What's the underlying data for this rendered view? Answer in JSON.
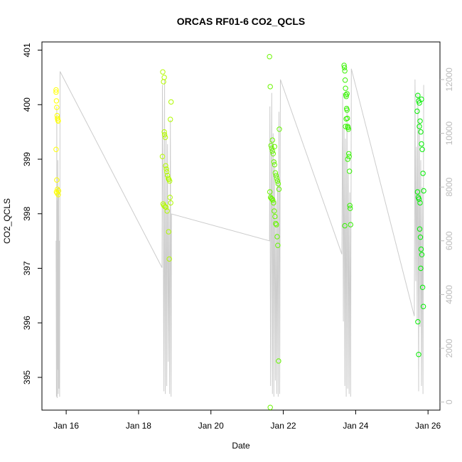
{
  "chart_data": {
    "type": "scatter",
    "title": "ORCAS RF01-6 CO2_QCLS",
    "xlabel": "Date",
    "ylabel": "CO2_QCLS",
    "x_ticks": [
      "Jan 16",
      "Jan 18",
      "Jan 20",
      "Jan 22",
      "Jan 24",
      "Jan 26"
    ],
    "x_tick_days": [
      16,
      18,
      20,
      22,
      24,
      26
    ],
    "xlim": [
      15.33,
      26.33
    ],
    "ylim": [
      394.4,
      401.15
    ],
    "y_ticks": [
      395,
      396,
      397,
      398,
      399,
      400,
      401
    ],
    "y2lim": [
      -300,
      13400
    ],
    "y2_ticks": [
      0,
      2000,
      4000,
      6000,
      8000,
      10000,
      12000
    ],
    "grid": false,
    "line_color": "#cccccc",
    "point_color_start": "#ffff00",
    "point_color_end": "#00ee00",
    "series": [
      {
        "kind": "points",
        "flights": [
          {
            "x": [
              15.72,
              15.72,
              15.73,
              15.74,
              15.75,
              15.76,
              15.77,
              15.78,
              15.72,
              15.74,
              15.76,
              15.73,
              15.75,
              15.78,
              15.79
            ],
            "y": [
              400.23,
              400.27,
              400.07,
              399.95,
              399.8,
              399.75,
              399.72,
              399.7,
              399.18,
              398.62,
              398.45,
              398.4,
              398.38,
              398.35,
              398.42
            ]
          },
          {
            "x": [
              18.67,
              18.69,
              18.71,
              18.72,
              18.74,
              18.75,
              18.77,
              18.78,
              18.8,
              18.82,
              18.84,
              18.86,
              18.87,
              18.89,
              18.68,
              18.7,
              18.73,
              18.76,
              18.79,
              18.83,
              18.85,
              18.88,
              18.9,
              18.71,
              18.66
            ],
            "y": [
              400.6,
              400.42,
              399.5,
              399.45,
              399.4,
              398.88,
              398.82,
              398.77,
              398.7,
              398.65,
              398.63,
              398.6,
              398.3,
              398.2,
              398.18,
              398.15,
              398.13,
              398.12,
              398.05,
              397.67,
              397.17,
              399.73,
              400.05,
              400.5,
              399.05
            ]
          },
          {
            "x": [
              21.62,
              21.64,
              21.66,
              21.68,
              21.7,
              21.72,
              21.74,
              21.76,
              21.78,
              21.8,
              21.82,
              21.84,
              21.86,
              21.88,
              21.63,
              21.65,
              21.67,
              21.69,
              21.71,
              21.73,
              21.75,
              21.77,
              21.79,
              21.81,
              21.83,
              21.85,
              21.87,
              21.89,
              21.64,
              21.7,
              21.76
            ],
            "y": [
              400.88,
              400.33,
              399.25,
              399.2,
              399.15,
              399.1,
              398.95,
              398.9,
              398.75,
              398.7,
              398.65,
              398.6,
              398.55,
              398.45,
              398.4,
              398.3,
              398.28,
              398.27,
              398.25,
              398.2,
              398.05,
              397.95,
              397.82,
              397.8,
              397.58,
              397.42,
              395.3,
              399.55,
              394.45,
              399.35,
              399.23
            ]
          },
          {
            "x": [
              23.68,
              23.69,
              23.7,
              23.71,
              23.72,
              23.73,
              23.74,
              23.75,
              23.76,
              23.77,
              23.78,
              23.79,
              23.8,
              23.81,
              23.82,
              23.83,
              23.84,
              23.85,
              23.86,
              23.7,
              23.72,
              23.74,
              23.76,
              23.78
            ],
            "y": [
              400.72,
              400.68,
              400.62,
              400.45,
              400.3,
              400.18,
              400.15,
              399.93,
              399.9,
              399.75,
              399.6,
              399.58,
              399.55,
              399.1,
              399.05,
              398.78,
              398.15,
              398.1,
              397.8,
              397.78,
              399.6,
              399.74,
              400.2,
              399.0
            ]
          },
          {
            "x": [
              25.7,
              25.72,
              25.74,
              25.76,
              25.78,
              25.8,
              25.82,
              25.84,
              25.86,
              25.88,
              25.71,
              25.73,
              25.75,
              25.77,
              25.79,
              25.81,
              25.83,
              25.85,
              25.87,
              25.72,
              25.74,
              25.76,
              25.78,
              25.8,
              25.82
            ],
            "y": [
              399.88,
              400.17,
              400.07,
              400.03,
              399.7,
              399.5,
              399.28,
              399.18,
              398.74,
              398.42,
              398.4,
              398.3,
              398.27,
              397.72,
              397.57,
              397.35,
              397.25,
              396.65,
              396.3,
              396.02,
              395.42,
              399.6,
              398.2,
              397.0,
              400.1
            ]
          }
        ]
      },
      {
        "kind": "line",
        "axis": "right",
        "name": "",
        "x": [
          15.72,
          15.73,
          15.74,
          15.75,
          15.75,
          15.76,
          15.77,
          15.78,
          15.79,
          15.8,
          15.81,
          15.82,
          15.83,
          18.65,
          18.66,
          18.68,
          18.7,
          18.72,
          18.72,
          18.74,
          18.76,
          18.78,
          18.8,
          18.82,
          18.84,
          18.86,
          18.88,
          18.9,
          18.91,
          21.62,
          21.63,
          21.65,
          21.68,
          21.7,
          21.72,
          21.74,
          21.76,
          21.78,
          21.8,
          21.82,
          21.84,
          21.86,
          21.88,
          21.9,
          21.92,
          23.62,
          23.64,
          23.66,
          23.68,
          23.7,
          23.72,
          23.74,
          23.76,
          23.78,
          23.8,
          23.82,
          23.84,
          23.86,
          23.88,
          25.62,
          25.64,
          25.66,
          25.68,
          25.7,
          25.72,
          25.74,
          25.76,
          25.78,
          25.8,
          25.82,
          25.84,
          25.86,
          25.88
        ],
        "y": [
          6000,
          200,
          11000,
          150,
          7500,
          1200,
          9000,
          300,
          8000,
          500,
          6000,
          200,
          12300,
          5000,
          11800,
          7800,
          400,
          12000,
          8500,
          300,
          10000,
          600,
          9600,
          1500,
          7200,
          300,
          10500,
          200,
          7000,
          6000,
          11000,
          600,
          11500,
          300,
          10000,
          200,
          9000,
          800,
          7500,
          300,
          8500,
          200,
          10800,
          300,
          12000,
          5500,
          11500,
          3000,
          10200,
          600,
          9800,
          200,
          11000,
          500,
          8500,
          300,
          7800,
          200,
          12400,
          3200,
          12000,
          4500,
          9500,
          3000,
          11500,
          400,
          10500,
          2800,
          9000,
          600,
          8000,
          300,
          11800
        ]
      }
    ]
  }
}
